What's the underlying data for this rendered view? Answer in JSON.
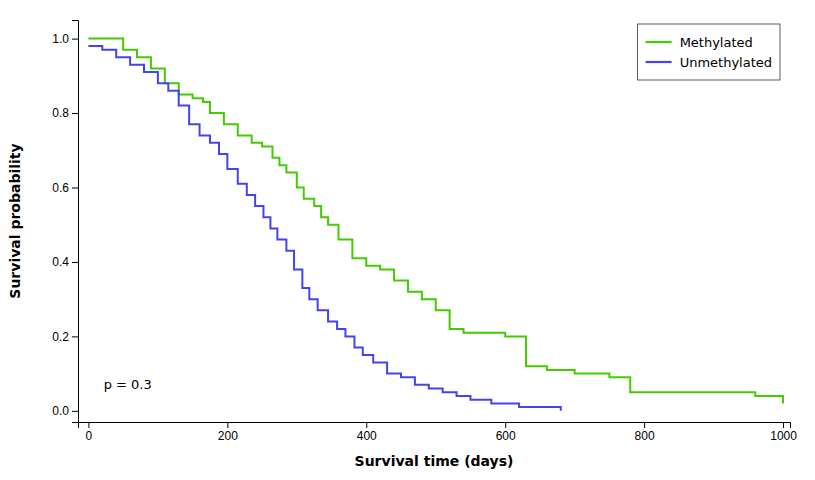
{
  "chart_data": {
    "type": "step",
    "xlabel": "Survival time (days)",
    "ylabel": "Survival probability",
    "series": [
      {
        "name": "Methylated",
        "color": "#44cc00",
        "x": [
          0,
          30,
          50,
          70,
          90,
          110,
          130,
          150,
          165,
          175,
          195,
          215,
          235,
          250,
          265,
          275,
          285,
          300,
          310,
          325,
          335,
          345,
          360,
          380,
          400,
          420,
          440,
          460,
          480,
          500,
          520,
          540,
          560,
          580,
          600,
          630,
          660,
          700,
          750,
          780,
          960,
          1000
        ],
        "values": [
          1.0,
          1.0,
          0.97,
          0.95,
          0.92,
          0.88,
          0.85,
          0.84,
          0.83,
          0.8,
          0.77,
          0.74,
          0.72,
          0.71,
          0.68,
          0.66,
          0.64,
          0.6,
          0.57,
          0.55,
          0.52,
          0.5,
          0.46,
          0.41,
          0.39,
          0.38,
          0.35,
          0.32,
          0.3,
          0.27,
          0.22,
          0.21,
          0.21,
          0.21,
          0.2,
          0.12,
          0.11,
          0.1,
          0.09,
          0.05,
          0.04,
          0.02
        ]
      },
      {
        "name": "Unmethylated",
        "color": "#4444ee",
        "x": [
          0,
          20,
          40,
          60,
          80,
          100,
          115,
          130,
          145,
          160,
          175,
          188,
          200,
          215,
          228,
          240,
          252,
          262,
          272,
          285,
          296,
          308,
          318,
          330,
          345,
          358,
          370,
          383,
          395,
          410,
          430,
          450,
          470,
          490,
          510,
          530,
          550,
          580,
          620,
          650,
          670,
          680
        ],
        "values": [
          0.98,
          0.97,
          0.95,
          0.93,
          0.91,
          0.88,
          0.86,
          0.82,
          0.77,
          0.74,
          0.72,
          0.69,
          0.65,
          0.61,
          0.58,
          0.55,
          0.52,
          0.49,
          0.46,
          0.43,
          0.38,
          0.33,
          0.3,
          0.27,
          0.24,
          0.22,
          0.2,
          0.17,
          0.15,
          0.13,
          0.1,
          0.09,
          0.07,
          0.06,
          0.05,
          0.04,
          0.03,
          0.02,
          0.01,
          0.01,
          0.01,
          0.0
        ]
      }
    ],
    "xlim": [
      -15,
      1010
    ],
    "ylim": [
      -0.03,
      1.05
    ],
    "xticks": [
      0,
      200,
      400,
      600,
      800,
      1000
    ],
    "yticks": [
      {
        "value": 0,
        "label": "0.0"
      },
      0.2,
      0.4,
      0.6,
      0.8,
      {
        "value": 1,
        "label": "1.0"
      }
    ],
    "annotations": [
      {
        "text": "p = 0.3",
        "x": 22,
        "y": 0.06
      }
    ],
    "legend": "upper right",
    "grid": false
  }
}
